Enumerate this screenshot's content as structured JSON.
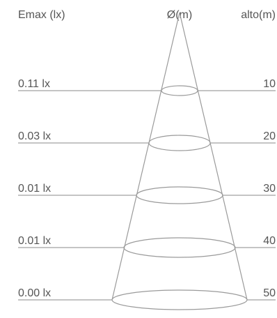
{
  "header": {
    "emax_label": "Emax (lx)",
    "diameter_label": "Ø(m)",
    "height_label": "alto(m)"
  },
  "rows": [
    {
      "illuminance": "0.11 lx",
      "height": "10"
    },
    {
      "illuminance": "0.03 lx",
      "height": "20"
    },
    {
      "illuminance": "0.01 lx",
      "height": "30"
    },
    {
      "illuminance": "0.01 lx",
      "height": "40"
    },
    {
      "illuminance": "0.00 lx",
      "height": "50"
    }
  ],
  "colors": {
    "text": "#555555",
    "line": "#8a8a8a",
    "cone": "#9a9a9a"
  }
}
